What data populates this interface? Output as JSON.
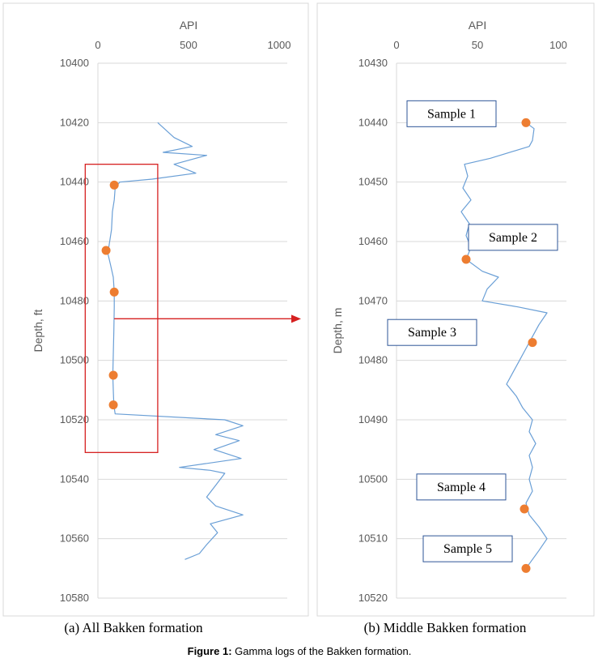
{
  "caption": {
    "label": "Figure 1:",
    "text": " Gamma logs of the Bakken formation."
  },
  "colors": {
    "log_line": "#6a9fd6",
    "marker": "#ed7d31",
    "highlight_box": "#d62020",
    "arrow": "#d62020",
    "sample_box": "#2e5597",
    "grid": "#d9d9d9",
    "axis_text": "#595959"
  },
  "chart_data": [
    {
      "type": "line",
      "subtitle": "(a) All Bakken formation",
      "xlabel": "API",
      "ylabel": "Depth, ft",
      "x_ticks": [
        0,
        500,
        1000
      ],
      "y_ticks": [
        10400,
        10420,
        10440,
        10460,
        10480,
        10500,
        10520,
        10540,
        10560,
        10580
      ],
      "xlim": [
        0,
        1000
      ],
      "ylim": [
        10400,
        10580
      ],
      "y_inverted": true,
      "x_axis_position": "top",
      "grid": "horizontal",
      "highlight_box": {
        "api_range": [
          -70,
          330
        ],
        "depth_range": [
          10434,
          10531
        ]
      },
      "arrow": {
        "from_depth": 10486,
        "from_api": 90,
        "to": "panel b"
      },
      "series": [
        {
          "points": [
            [
              330,
              10420
            ],
            [
              420,
              10425
            ],
            [
              520,
              10428
            ],
            [
              360,
              10430
            ],
            [
              600,
              10431
            ],
            [
              420,
              10434
            ],
            [
              540,
              10437
            ],
            [
              300,
              10439
            ],
            [
              120,
              10440
            ],
            [
              95,
              10442
            ],
            [
              90,
              10446
            ],
            [
              80,
              10450
            ],
            [
              75,
              10456
            ],
            [
              60,
              10462
            ],
            [
              55,
              10464
            ],
            [
              70,
              10468
            ],
            [
              85,
              10472
            ],
            [
              90,
              10477
            ],
            [
              90,
              10482
            ],
            [
              88,
              10490
            ],
            [
              85,
              10498
            ],
            [
              82,
              10505
            ],
            [
              85,
              10510
            ],
            [
              88,
              10515
            ],
            [
              95,
              10518
            ],
            [
              700,
              10520
            ],
            [
              800,
              10522
            ],
            [
              650,
              10525
            ],
            [
              780,
              10527
            ],
            [
              640,
              10530
            ],
            [
              790,
              10533
            ],
            [
              450,
              10536
            ],
            [
              620,
              10537
            ],
            [
              700,
              10538
            ],
            [
              650,
              10542
            ],
            [
              600,
              10546
            ],
            [
              650,
              10549
            ],
            [
              800,
              10552
            ],
            [
              620,
              10555
            ],
            [
              660,
              10558
            ],
            [
              600,
              10562
            ],
            [
              560,
              10565
            ],
            [
              480,
              10567
            ]
          ]
        }
      ],
      "markers": [
        [
          90,
          10441
        ],
        [
          45,
          10463
        ],
        [
          90,
          10477
        ],
        [
          85,
          10505
        ],
        [
          85,
          10515
        ]
      ]
    },
    {
      "type": "line",
      "subtitle": "(b) Middle Bakken formation",
      "xlabel": "API",
      "ylabel": "Depth, m",
      "x_ticks": [
        0,
        50,
        100
      ],
      "y_ticks": [
        10430,
        10440,
        10450,
        10460,
        10470,
        10480,
        10490,
        10500,
        10510,
        10520
      ],
      "xlim": [
        0,
        100
      ],
      "ylim": [
        10430,
        10520
      ],
      "y_inverted": true,
      "x_axis_position": "top",
      "grid": "horizontal",
      "series": [
        {
          "points": [
            [
              80,
              10440
            ],
            [
              85,
              10441
            ],
            [
              84,
              10443
            ],
            [
              82,
              10444
            ],
            [
              58,
              10446
            ],
            [
              42,
              10447
            ],
            [
              44,
              10449
            ],
            [
              41,
              10451
            ],
            [
              46,
              10453
            ],
            [
              40,
              10455
            ],
            [
              45,
              10457
            ],
            [
              43,
              10459
            ],
            [
              46,
              10461
            ],
            [
              43,
              10463
            ],
            [
              53,
              10465
            ],
            [
              63,
              10466
            ],
            [
              56,
              10468
            ],
            [
              53,
              10470
            ],
            [
              75,
              10471
            ],
            [
              93,
              10472
            ],
            [
              88,
              10474
            ],
            [
              84,
              10476
            ],
            [
              80,
              10478
            ],
            [
              76,
              10480
            ],
            [
              72,
              10482
            ],
            [
              68,
              10484
            ],
            [
              74,
              10486
            ],
            [
              78,
              10488
            ],
            [
              84,
              10490
            ],
            [
              82,
              10492
            ],
            [
              86,
              10494
            ],
            [
              82,
              10496
            ],
            [
              84,
              10498
            ],
            [
              82,
              10500
            ],
            [
              84,
              10502
            ],
            [
              80,
              10504
            ],
            [
              82,
              10506
            ],
            [
              88,
              10508
            ],
            [
              93,
              10510
            ],
            [
              88,
              10512
            ],
            [
              80,
              10515
            ]
          ]
        }
      ],
      "markers": [
        [
          80,
          10440
        ],
        [
          43,
          10463
        ],
        [
          84,
          10477
        ],
        [
          79,
          10505
        ],
        [
          80,
          10515
        ]
      ],
      "annotations": [
        {
          "text": "Sample 1",
          "api": 34,
          "depth": 10438.5
        },
        {
          "text": "Sample 2",
          "api": 72,
          "depth": 10459.3
        },
        {
          "text": "Sample 3",
          "api": 22,
          "depth": 10475.3
        },
        {
          "text": "Sample 4",
          "api": 40,
          "depth": 10501.3
        },
        {
          "text": "Sample 5",
          "api": 44,
          "depth": 10511.7
        }
      ]
    }
  ]
}
